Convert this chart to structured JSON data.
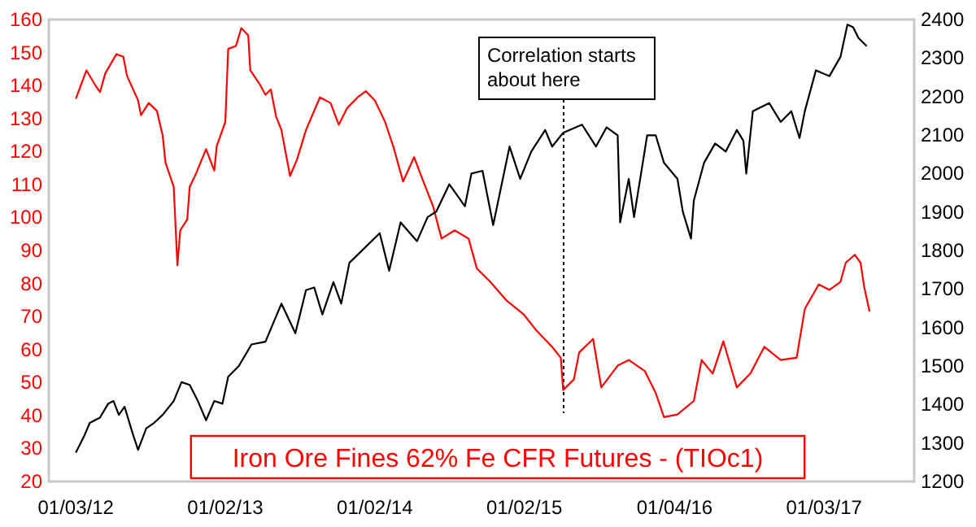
{
  "chart_data": {
    "type": "line",
    "xlim": [
      "2011-10-29",
      "2017-08-11"
    ],
    "xticks": [
      {
        "value": "2012-01-03",
        "label": "01/03/12"
      },
      {
        "value": "2013-01-02",
        "label": "01/02/13"
      },
      {
        "value": "2014-01-02",
        "label": "01/02/14"
      },
      {
        "value": "2015-01-02",
        "label": "01/02/15"
      },
      {
        "value": "2016-01-04",
        "label": "01/04/16"
      },
      {
        "value": "2017-01-03",
        "label": "01/03/17"
      }
    ],
    "ylim": [
      20,
      160
    ],
    "yticks": [
      20,
      30,
      40,
      50,
      60,
      70,
      80,
      90,
      100,
      110,
      120,
      130,
      140,
      150,
      160
    ],
    "y2lim": [
      1200,
      2400
    ],
    "y2ticks": [
      1200,
      1300,
      1400,
      1500,
      1600,
      1700,
      1800,
      1900,
      2000,
      2100,
      2200,
      2300,
      2400
    ],
    "grid": false,
    "legend": "bottom",
    "ref_lines": [
      {
        "axis": "x",
        "value": "2015-04-08",
        "label": "Correlation starts about here",
        "line_style": "dotted",
        "color": "#000000"
      }
    ],
    "series": [
      {
        "name": "Iron Ore Fines 62% Fe CFR Futures - (TIOc1)",
        "color": "#ff0000",
        "x": [
          "2012-01-03",
          "2012-01-29",
          "2012-02-18",
          "2012-03-02",
          "2012-03-15",
          "2012-04-11",
          "2012-04-28",
          "2012-05-07",
          "2012-06-03",
          "2012-06-10",
          "2012-06-29",
          "2012-07-19",
          "2012-08-02",
          "2012-08-09",
          "2012-08-29",
          "2012-09-07",
          "2012-09-14",
          "2012-10-01",
          "2012-10-07",
          "2012-10-20",
          "2012-11-16",
          "2012-12-06",
          "2012-12-12",
          "2013-01-02",
          "2013-01-09",
          "2013-01-28",
          "2013-02-10",
          "2013-02-27",
          "2013-03-04",
          "2013-03-27",
          "2013-04-10",
          "2013-04-23",
          "2013-05-06",
          "2013-05-19",
          "2013-06-09",
          "2013-06-26",
          "2013-07-18",
          "2013-08-21",
          "2013-09-16",
          "2013-10-06",
          "2013-10-26",
          "2013-11-21",
          "2013-12-11",
          "2014-01-02",
          "2014-01-27",
          "2014-02-16",
          "2014-03-12",
          "2014-04-08",
          "2014-04-28",
          "2014-05-24",
          "2014-06-14",
          "2014-07-16",
          "2014-08-19",
          "2014-09-08",
          "2014-10-11",
          "2014-11-20",
          "2014-12-31",
          "2015-02-01",
          "2015-03-11",
          "2015-04-01",
          "2015-04-07",
          "2015-05-03",
          "2015-05-16",
          "2015-06-19",
          "2015-07-09",
          "2015-08-18",
          "2015-09-14",
          "2015-10-23",
          "2015-11-19",
          "2015-12-09",
          "2016-01-11",
          "2016-02-20",
          "2016-03-10",
          "2016-04-06",
          "2016-05-02",
          "2016-06-04",
          "2016-07-07",
          "2016-08-10",
          "2016-09-19",
          "2016-10-28",
          "2016-11-17",
          "2016-12-21",
          "2017-01-16",
          "2017-02-12",
          "2017-02-25",
          "2017-03-19",
          "2017-04-02",
          "2017-04-11",
          "2017-04-24"
        ],
        "values": [
          136,
          144.6,
          140.4,
          138,
          143.7,
          149.5,
          148.7,
          142.9,
          135.5,
          131,
          134.7,
          132.3,
          124.9,
          116.6,
          109.3,
          85.5,
          96.1,
          99.4,
          109.3,
          112.6,
          120.7,
          114.2,
          121.6,
          129,
          151.1,
          152,
          157.4,
          155.2,
          144.6,
          140.4,
          137.2,
          138.8,
          130.6,
          126.5,
          112.6,
          117.5,
          126.5,
          136.4,
          134.7,
          128.1,
          133.1,
          136.4,
          138.3,
          135.5,
          129,
          121.6,
          110.9,
          118.3,
          111.7,
          103.5,
          93.6,
          96.1,
          93.6,
          84.6,
          80.5,
          74.8,
          70.7,
          65.7,
          60.8,
          57.5,
          47.7,
          50.9,
          59.1,
          63.2,
          48.5,
          55.1,
          56.8,
          53.5,
          46.8,
          39.5,
          40.3,
          44.4,
          56.8,
          52.7,
          62.5,
          48.5,
          52.7,
          60.8,
          56.8,
          57.5,
          72.3,
          79.7,
          78.1,
          80.5,
          86.3,
          88.7,
          86.3,
          78.9,
          71.5
        ]
      },
      {
        "color": "#000000",
        "axis": "y2",
        "x": [
          "2012-01-03",
          "2012-01-23",
          "2012-02-06",
          "2012-03-02",
          "2012-03-22",
          "2012-04-04",
          "2012-04-17",
          "2012-05-01",
          "2012-05-21",
          "2012-06-03",
          "2012-06-23",
          "2012-07-12",
          "2012-08-02",
          "2012-08-29",
          "2012-09-17",
          "2012-10-07",
          "2012-10-27",
          "2012-11-16",
          "2012-12-06",
          "2012-12-26",
          "2013-01-09",
          "2013-02-04",
          "2013-03-07",
          "2013-04-10",
          "2013-05-19",
          "2013-06-22",
          "2013-07-18",
          "2013-08-07",
          "2013-08-27",
          "2013-09-23",
          "2013-10-12",
          "2013-11-01",
          "2013-11-28",
          "2014-01-14",
          "2014-02-06",
          "2014-03-06",
          "2014-04-15",
          "2014-05-11",
          "2014-06-01",
          "2014-07-03",
          "2014-08-10",
          "2014-08-26",
          "2014-09-22",
          "2014-10-18",
          "2014-11-27",
          "2014-12-23",
          "2015-01-19",
          "2015-02-22",
          "2015-03-11",
          "2015-04-07",
          "2015-05-23",
          "2015-06-26",
          "2015-07-22",
          "2015-08-18",
          "2015-08-24",
          "2015-09-14",
          "2015-09-27",
          "2015-10-29",
          "2015-11-19",
          "2015-12-09",
          "2016-01-11",
          "2016-01-24",
          "2016-02-13",
          "2016-02-20",
          "2016-03-16",
          "2016-04-12",
          "2016-05-08",
          "2016-06-04",
          "2016-06-20",
          "2016-06-27",
          "2016-07-13",
          "2016-08-22",
          "2016-09-19",
          "2016-10-15",
          "2016-11-04",
          "2016-11-17",
          "2016-12-14",
          "2017-01-16",
          "2017-02-12",
          "2017-03-01",
          "2017-03-15",
          "2017-03-28",
          "2017-04-17"
        ],
        "values": [
          1275,
          1317,
          1352,
          1366,
          1402,
          1409,
          1373,
          1394,
          1324,
          1282,
          1338,
          1352,
          1373,
          1409,
          1458,
          1451,
          1409,
          1359,
          1409,
          1402,
          1472,
          1500,
          1556,
          1563,
          1662,
          1585,
          1697,
          1704,
          1634,
          1718,
          1662,
          1768,
          1796,
          1845,
          1747,
          1873,
          1824,
          1887,
          1901,
          1972,
          1915,
          2000,
          2007,
          1866,
          2070,
          1986,
          2057,
          2113,
          2070,
          2106,
          2127,
          2070,
          2120,
          2099,
          1873,
          1986,
          1887,
          2099,
          2099,
          2028,
          1986,
          1901,
          1831,
          1930,
          2028,
          2078,
          2057,
          2113,
          2085,
          2000,
          2162,
          2183,
          2134,
          2162,
          2092,
          2162,
          2268,
          2253,
          2303,
          2387,
          2380,
          2352,
          2331
        ]
      }
    ]
  }
}
